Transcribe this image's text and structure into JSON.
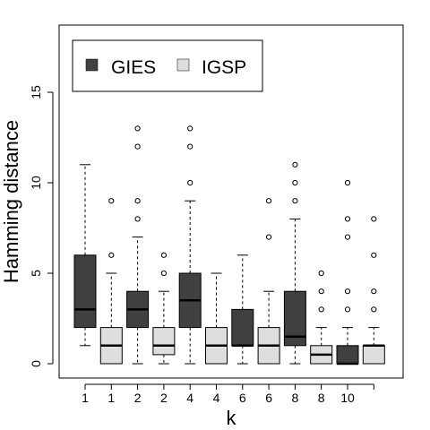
{
  "chart_data": {
    "type": "box",
    "xlabel": "k",
    "ylabel": "Hamming distance",
    "ylim": [
      -0.5,
      18.5
    ],
    "yticks": [
      0,
      5,
      10,
      15
    ],
    "grid": false,
    "legend": {
      "placement": "top-left",
      "entries": [
        {
          "name": "GIES",
          "color": "#404040"
        },
        {
          "name": "IGSP",
          "color": "#dedede"
        }
      ]
    },
    "boxes": [
      {
        "label": "1",
        "method": "GIES",
        "min": 1,
        "q1": 2,
        "median": 3,
        "q3": 6,
        "max": 11,
        "outliers": []
      },
      {
        "label": "1",
        "method": "IGSP",
        "min": 0,
        "q1": 0,
        "median": 1,
        "q3": 2,
        "max": 5,
        "outliers": [
          6,
          9
        ]
      },
      {
        "label": "2",
        "method": "GIES",
        "min": 0,
        "q1": 2,
        "median": 3,
        "q3": 4,
        "max": 7,
        "outliers": [
          8,
          9,
          12,
          13
        ]
      },
      {
        "label": "2",
        "method": "IGSP",
        "min": 0,
        "q1": 0.5,
        "median": 1,
        "q3": 2,
        "max": 4,
        "outliers": [
          5,
          6
        ]
      },
      {
        "label": "4",
        "method": "GIES",
        "min": 0,
        "q1": 2,
        "median": 3.5,
        "q3": 5,
        "max": 9,
        "outliers": [
          10,
          12,
          13
        ]
      },
      {
        "label": "4",
        "method": "IGSP",
        "min": 0,
        "q1": 0,
        "median": 1,
        "q3": 2,
        "max": 5,
        "outliers": []
      },
      {
        "label": "6",
        "method": "GIES",
        "min": 0,
        "q1": 1,
        "median": 1,
        "q3": 3,
        "max": 6,
        "outliers": []
      },
      {
        "label": "6",
        "method": "IGSP",
        "min": 0,
        "q1": 0,
        "median": 1,
        "q3": 2,
        "max": 4,
        "outliers": [
          7,
          9
        ]
      },
      {
        "label": "8",
        "method": "GIES",
        "min": 0,
        "q1": 1,
        "median": 1.5,
        "q3": 4,
        "max": 8,
        "outliers": [
          9,
          10,
          11
        ]
      },
      {
        "label": "8",
        "method": "IGSP",
        "min": 0,
        "q1": 0,
        "median": 0.5,
        "q3": 1,
        "max": 2,
        "outliers": [
          3,
          4,
          5
        ]
      },
      {
        "label": "10",
        "method": "GIES",
        "min": 0,
        "q1": 0,
        "median": 0,
        "q3": 1,
        "max": 2,
        "outliers": [
          3,
          4,
          7,
          8,
          10
        ]
      },
      {
        "label": "",
        "method": "IGSP",
        "min": 0,
        "q1": 0,
        "median": 1,
        "q3": 1,
        "max": 2,
        "outliers": [
          3,
          4,
          6,
          8
        ]
      }
    ]
  }
}
